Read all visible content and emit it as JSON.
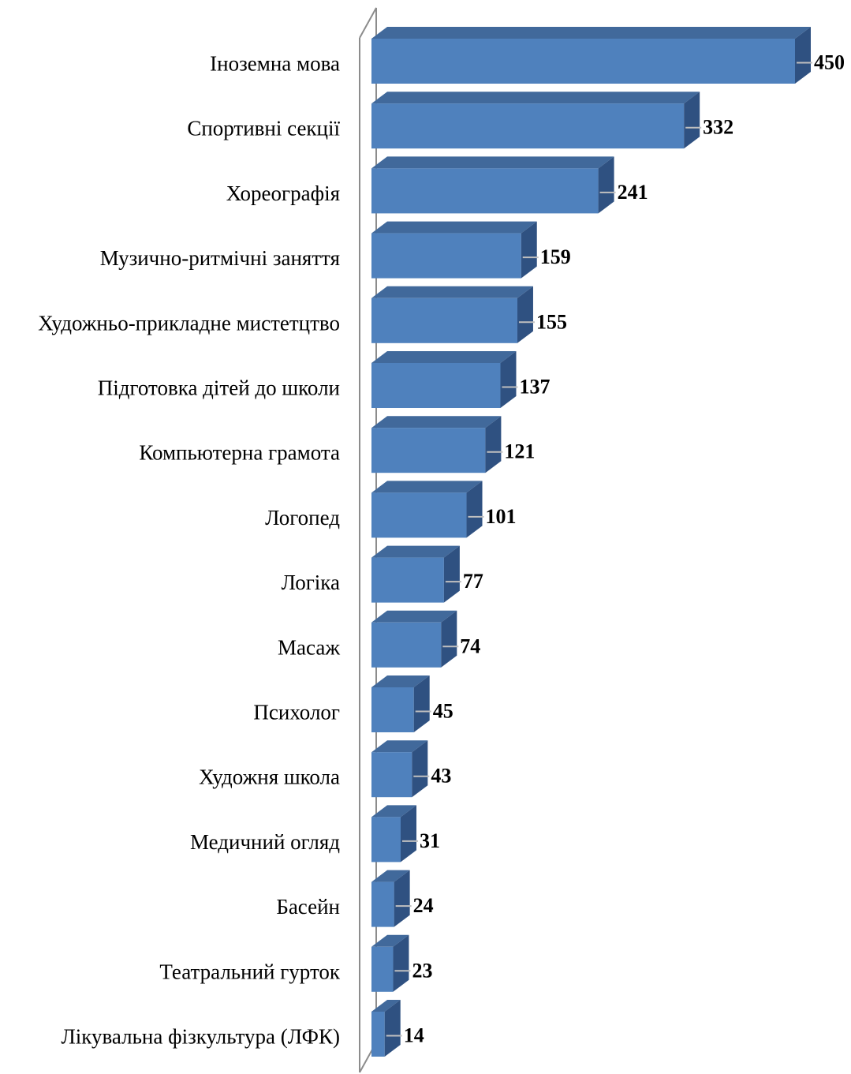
{
  "chart_data": {
    "type": "bar",
    "orientation": "horizontal",
    "style": "3d",
    "categories": [
      "Іноземна мова",
      "Спортивні секції",
      "Хореографія",
      "Музично-ритмічні заняття",
      "Художньо-прикладне мистетцтво",
      "Підготовка дітей до школи",
      "Компьютерна грамота",
      "Логопед",
      "Логіка",
      "Масаж",
      "Психолог",
      "Художня школа",
      "Медичний огляд",
      "Басейн",
      "Театральний гурток",
      "Лікувальна фізкультура (ЛФК)"
    ],
    "values": [
      450,
      332,
      241,
      159,
      155,
      137,
      121,
      101,
      77,
      74,
      45,
      43,
      31,
      24,
      23,
      14
    ],
    "value_labels": [
      "450",
      "332",
      "241",
      "159",
      "155",
      "137",
      "121",
      "101",
      "77",
      "74",
      "45",
      "43",
      "31",
      "24",
      "23",
      "14"
    ],
    "xlim": [
      0,
      450
    ],
    "grid": false,
    "legend": "none",
    "colors": {
      "bar_front": "#4f81bd",
      "bar_top": "#41699b",
      "bar_side": "#2f5181",
      "axis_wall": "#8c8c8c",
      "leader_line": "#c0c0c0"
    }
  }
}
